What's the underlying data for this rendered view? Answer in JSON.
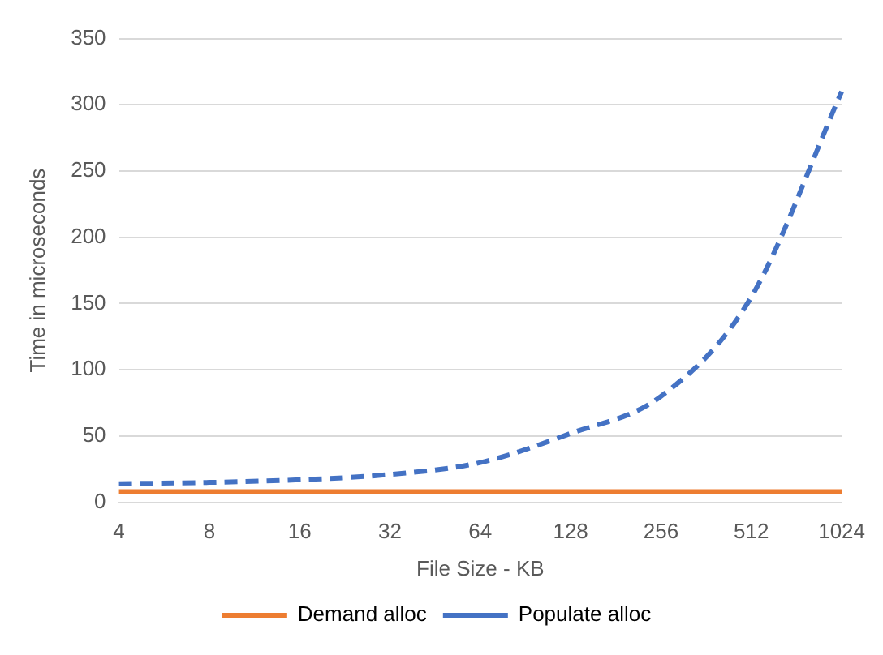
{
  "chart_data": {
    "type": "line",
    "xlabel": "File Size - KB",
    "ylabel": "Time in microseconds",
    "categories": [
      "4",
      "8",
      "16",
      "32",
      "64",
      "128",
      "256",
      "512",
      "1024"
    ],
    "series": [
      {
        "name": "Demand alloc",
        "color": "#ed7d31",
        "line_style": "solid",
        "values": [
          8,
          8,
          8,
          8,
          8,
          8,
          8,
          8,
          8
        ]
      },
      {
        "name": "Populate alloc",
        "color": "#4472c4",
        "line_style": "dashed",
        "values": [
          14,
          15,
          17,
          21,
          30,
          52,
          80,
          155,
          310
        ]
      }
    ],
    "ylim": [
      0,
      350
    ],
    "yticks": [
      0,
      50,
      100,
      150,
      200,
      250,
      300,
      350
    ],
    "grid": "y",
    "legend": "bottom",
    "marker": "none"
  }
}
